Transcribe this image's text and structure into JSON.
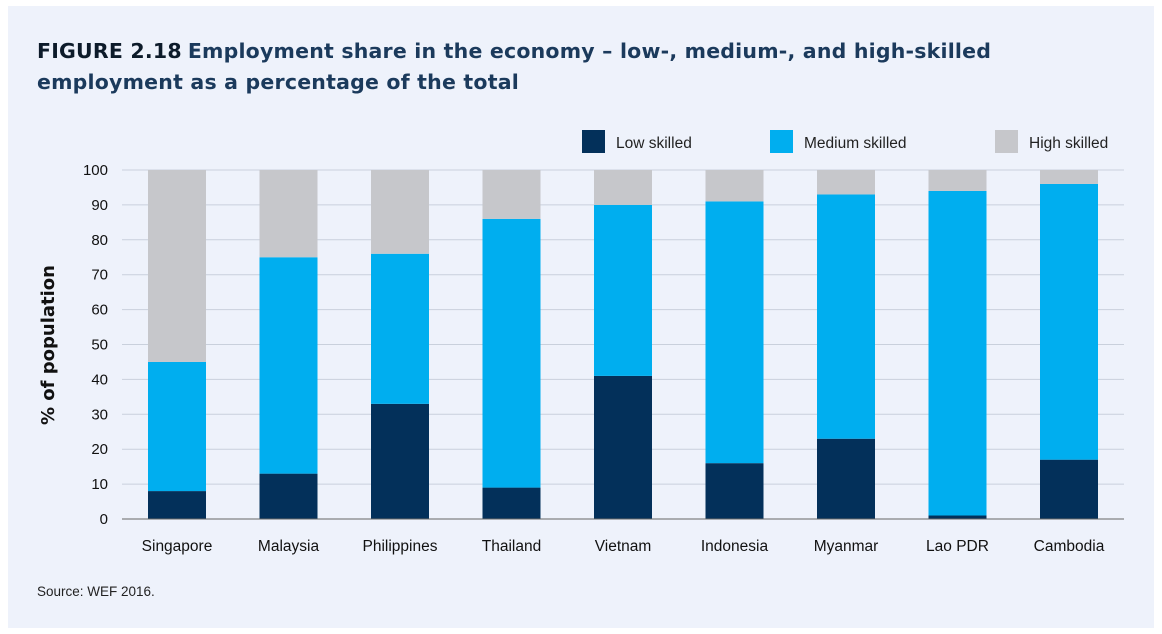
{
  "figure": {
    "number": "FIGURE 2.18",
    "title": "Employment share in the economy – low-, medium-, and high-skilled employment as a percentage of the total",
    "source": "Source: WEF 2016."
  },
  "colors": {
    "low": "#03305a",
    "medium": "#00aeef",
    "high": "#c6c7cb",
    "grid": "#c9d0dc",
    "axis": "#666666"
  },
  "chart_data": {
    "type": "bar",
    "stacked": true,
    "title": "Employment share in the economy – low-, medium-, and high-skilled employment as a percentage of the total",
    "xlabel": "",
    "ylabel": "% of population",
    "ylim": [
      0,
      100
    ],
    "yticks": [
      0,
      10,
      20,
      30,
      40,
      50,
      60,
      70,
      80,
      90,
      100
    ],
    "grid": true,
    "legend_position": "top-right",
    "categories": [
      "Singapore",
      "Malaysia",
      "Philippines",
      "Thailand",
      "Vietnam",
      "Indonesia",
      "Myanmar",
      "Lao PDR",
      "Cambodia"
    ],
    "series": [
      {
        "key": "low",
        "name": "Low skilled",
        "values": [
          8,
          13,
          33,
          9,
          41,
          16,
          23,
          1,
          17
        ]
      },
      {
        "key": "medium",
        "name": "Medium skilled",
        "values": [
          37,
          62,
          43,
          77,
          49,
          75,
          70,
          93,
          79
        ]
      },
      {
        "key": "high",
        "name": "High skilled",
        "values": [
          55,
          25,
          24,
          14,
          10,
          9,
          7,
          6,
          4
        ]
      }
    ]
  }
}
